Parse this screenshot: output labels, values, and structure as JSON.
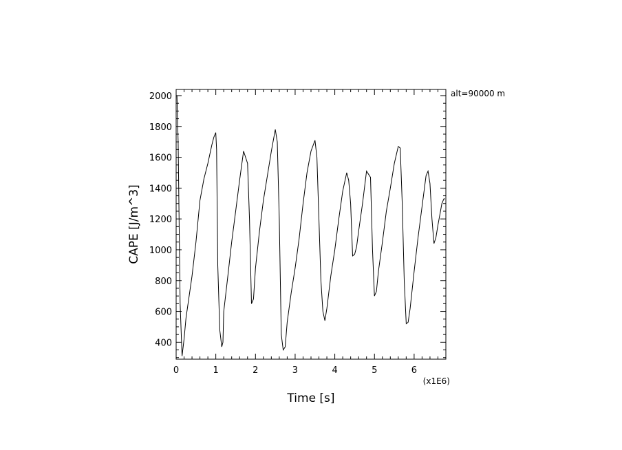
{
  "chart_data": {
    "type": "line",
    "xlabel": "Time [s]",
    "ylabel": "CAPE [J/m^3]",
    "x_multiplier_label": "(x1E6)",
    "annotation": "alt=90000 m",
    "xlim": [
      0,
      6.8
    ],
    "ylim": [
      290,
      2040
    ],
    "x_ticks": [
      0,
      1,
      2,
      3,
      4,
      5,
      6
    ],
    "y_ticks": [
      400,
      600,
      800,
      1000,
      1200,
      1400,
      1600,
      1800,
      2000
    ],
    "grid": false,
    "series": [
      {
        "color": "#000000",
        "x": [
          0,
          0.02,
          0.05,
          0.1,
          0.15,
          0.2,
          0.25,
          0.3,
          0.4,
          0.5,
          0.6,
          0.7,
          0.8,
          0.9,
          0.95,
          1.0,
          1.02,
          1.05,
          1.1,
          1.15,
          1.18,
          1.2,
          1.3,
          1.4,
          1.5,
          1.6,
          1.7,
          1.8,
          1.85,
          1.9,
          1.95,
          2.0,
          2.1,
          2.2,
          2.3,
          2.4,
          2.5,
          2.55,
          2.6,
          2.65,
          2.7,
          2.75,
          2.8,
          2.9,
          3.0,
          3.1,
          3.2,
          3.3,
          3.4,
          3.5,
          3.55,
          3.6,
          3.65,
          3.7,
          3.75,
          3.8,
          3.9,
          4.0,
          4.1,
          4.2,
          4.3,
          4.35,
          4.4,
          4.45,
          4.5,
          4.55,
          4.6,
          4.7,
          4.8,
          4.85,
          4.9,
          4.95,
          5.0,
          5.05,
          5.1,
          5.2,
          5.3,
          5.4,
          5.5,
          5.6,
          5.65,
          5.7,
          5.75,
          5.8,
          5.85,
          5.9,
          6.0,
          6.1,
          6.2,
          6.3,
          6.35,
          6.4,
          6.45,
          6.5,
          6.55,
          6.6,
          6.65,
          6.7,
          6.75,
          6.78
        ],
        "y": [
          2000,
          2000,
          1700,
          650,
          310,
          420,
          560,
          650,
          830,
          1050,
          1320,
          1460,
          1560,
          1680,
          1730,
          1760,
          1650,
          900,
          480,
          370,
          400,
          600,
          820,
          1050,
          1250,
          1450,
          1640,
          1560,
          1200,
          650,
          680,
          880,
          1120,
          1320,
          1480,
          1640,
          1780,
          1700,
          1200,
          450,
          350,
          370,
          530,
          720,
          880,
          1070,
          1300,
          1500,
          1640,
          1710,
          1600,
          1200,
          800,
          600,
          540,
          620,
          830,
          1000,
          1200,
          1380,
          1500,
          1450,
          1300,
          960,
          970,
          1020,
          1120,
          1300,
          1510,
          1490,
          1470,
          1000,
          700,
          730,
          860,
          1050,
          1250,
          1400,
          1560,
          1670,
          1660,
          1300,
          800,
          520,
          530,
          620,
          860,
          1080,
          1280,
          1480,
          1510,
          1430,
          1200,
          1040,
          1080,
          1160,
          1230,
          1300,
          1330,
          1330
        ]
      }
    ]
  }
}
